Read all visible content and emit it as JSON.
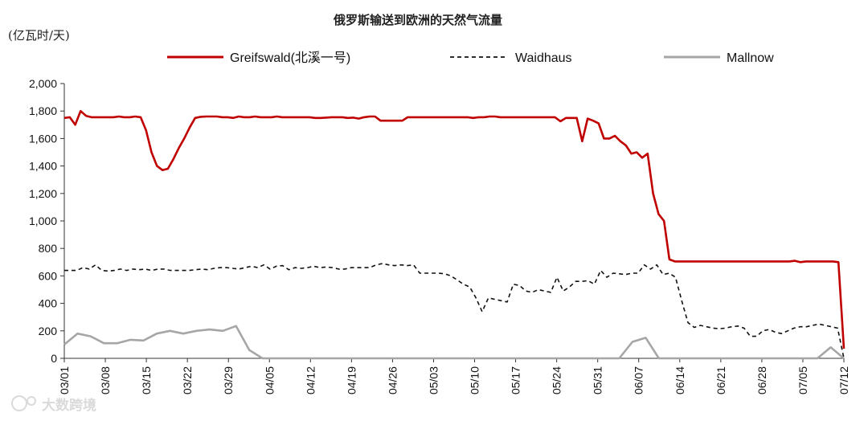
{
  "chart_data": {
    "type": "line",
    "title": "俄罗斯输送到欧洲的天然气流量",
    "unit_label": "(亿瓦时/天)",
    "ylim": [
      0,
      2000
    ],
    "y_ticks": [
      "0",
      "200",
      "400",
      "600",
      "800",
      "1,000",
      "1,200",
      "1,400",
      "1,600",
      "1,800",
      "2,000"
    ],
    "grid": false,
    "legend_position": "top",
    "x_start": "03/01",
    "x_end": "07/12",
    "x_ticks": [
      "03/01",
      "03/08",
      "03/15",
      "03/22",
      "03/29",
      "04/05",
      "04/12",
      "04/19",
      "04/26",
      "05/03",
      "05/10",
      "05/17",
      "05/24",
      "05/31",
      "06/07",
      "06/14",
      "06/21",
      "06/28",
      "07/05",
      "07/12"
    ],
    "series": [
      {
        "name": "Greifswald(北溪一号)",
        "color": "#c00000",
        "style": "solid",
        "values": [
          1750,
          1755,
          1700,
          1800,
          1765,
          1755,
          1755,
          1755,
          1755,
          1755,
          1760,
          1755,
          1755,
          1760,
          1755,
          1660,
          1500,
          1400,
          1370,
          1380,
          1450,
          1530,
          1600,
          1680,
          1750,
          1758,
          1760,
          1760,
          1760,
          1755,
          1755,
          1750,
          1760,
          1755,
          1755,
          1760,
          1755,
          1755,
          1755,
          1760,
          1755,
          1755,
          1755,
          1755,
          1755,
          1755,
          1750,
          1750,
          1752,
          1755,
          1755,
          1755,
          1750,
          1752,
          1745,
          1755,
          1760,
          1760,
          1730,
          1730,
          1730,
          1730,
          1730,
          1755,
          1755,
          1755,
          1755,
          1755,
          1755,
          1755,
          1755,
          1755,
          1755,
          1755,
          1755,
          1750,
          1755,
          1755,
          1760,
          1760,
          1755,
          1755,
          1755,
          1755,
          1755,
          1755,
          1755,
          1755,
          1755,
          1755,
          1755,
          1725,
          1750,
          1750,
          1750,
          1580,
          1745,
          1730,
          1710,
          1600,
          1600,
          1620,
          1580,
          1550,
          1490,
          1500,
          1460,
          1490,
          1200,
          1050,
          1000,
          720,
          705,
          705,
          705,
          705,
          705,
          705,
          705,
          705,
          705,
          705,
          705,
          705,
          705,
          705,
          705,
          705,
          705,
          705,
          705,
          705,
          705,
          705,
          710,
          700,
          705,
          705,
          705,
          705,
          705,
          705,
          700,
          70
        ]
      },
      {
        "name": "Waidhaus",
        "color": "#111111",
        "style": "dashed",
        "values": [
          640,
          640,
          640,
          660,
          650,
          680,
          640,
          635,
          640,
          650,
          640,
          650,
          645,
          650,
          640,
          650,
          650,
          640,
          640,
          640,
          640,
          645,
          650,
          645,
          655,
          660,
          660,
          655,
          650,
          660,
          670,
          660,
          680,
          650,
          670,
          675,
          645,
          660,
          655,
          660,
          670,
          660,
          665,
          660,
          650,
          650,
          660,
          660,
          660,
          660,
          680,
          690,
          680,
          675,
          680,
          675,
          680,
          620,
          620,
          620,
          620,
          615,
          600,
          570,
          540,
          520,
          440,
          340,
          440,
          430,
          420,
          410,
          540,
          530,
          490,
          480,
          500,
          490,
          480,
          590,
          490,
          520,
          560,
          560,
          565,
          540,
          640,
          590,
          620,
          615,
          610,
          620,
          620,
          680,
          650,
          680,
          610,
          620,
          590,
          420,
          260,
          225,
          240,
          230,
          220,
          215,
          220,
          230,
          235,
          220,
          160,
          160,
          200,
          210,
          190,
          180,
          200,
          220,
          230,
          230,
          240,
          250,
          240,
          230,
          220,
          0
        ]
      },
      {
        "name": "Mallnow",
        "color": "#a6a6a6",
        "style": "solid",
        "values": [
          100,
          180,
          160,
          110,
          110,
          135,
          130,
          180,
          200,
          180,
          200,
          210,
          200,
          235,
          60,
          0,
          0,
          0,
          0,
          0,
          0,
          0,
          0,
          0,
          0,
          0,
          0,
          0,
          0,
          0,
          0,
          0,
          0,
          0,
          0,
          0,
          0,
          0,
          0,
          0,
          0,
          0,
          0,
          120,
          150,
          0,
          0,
          0,
          0,
          0,
          0,
          0,
          0,
          0,
          0,
          0,
          0,
          0,
          80,
          0
        ]
      }
    ]
  },
  "watermark": "大数跨境"
}
